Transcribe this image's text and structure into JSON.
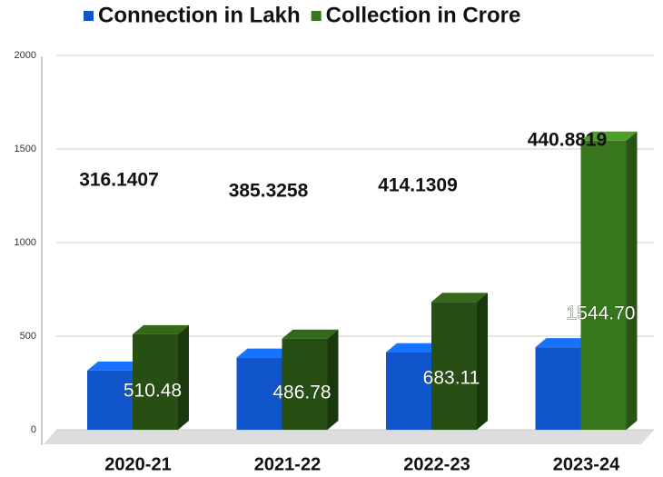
{
  "chart_data": {
    "type": "bar3d",
    "categories": [
      "2020-21",
      "2021-22",
      "2022-23",
      "2023-24"
    ],
    "series": [
      {
        "name": "Connection in Lakh",
        "color": "#1155cc",
        "values": [
          316.1407,
          385.3258,
          414.1309,
          440.8819
        ]
      },
      {
        "name": "Collection in Crore",
        "color": "#38761d",
        "colors": [
          "#274e13",
          "#274e13",
          "#274e13",
          "#38761d"
        ],
        "values": [
          510.48,
          486.78,
          683.11,
          1544.7
        ],
        "value_labels": [
          "510.48",
          "486.78",
          "683.11",
          "1544.70"
        ]
      }
    ],
    "ylim": [
      0,
      2000
    ],
    "yticks": [
      0,
      500,
      1000,
      1500,
      2000
    ],
    "grid": true,
    "legend": "top"
  }
}
